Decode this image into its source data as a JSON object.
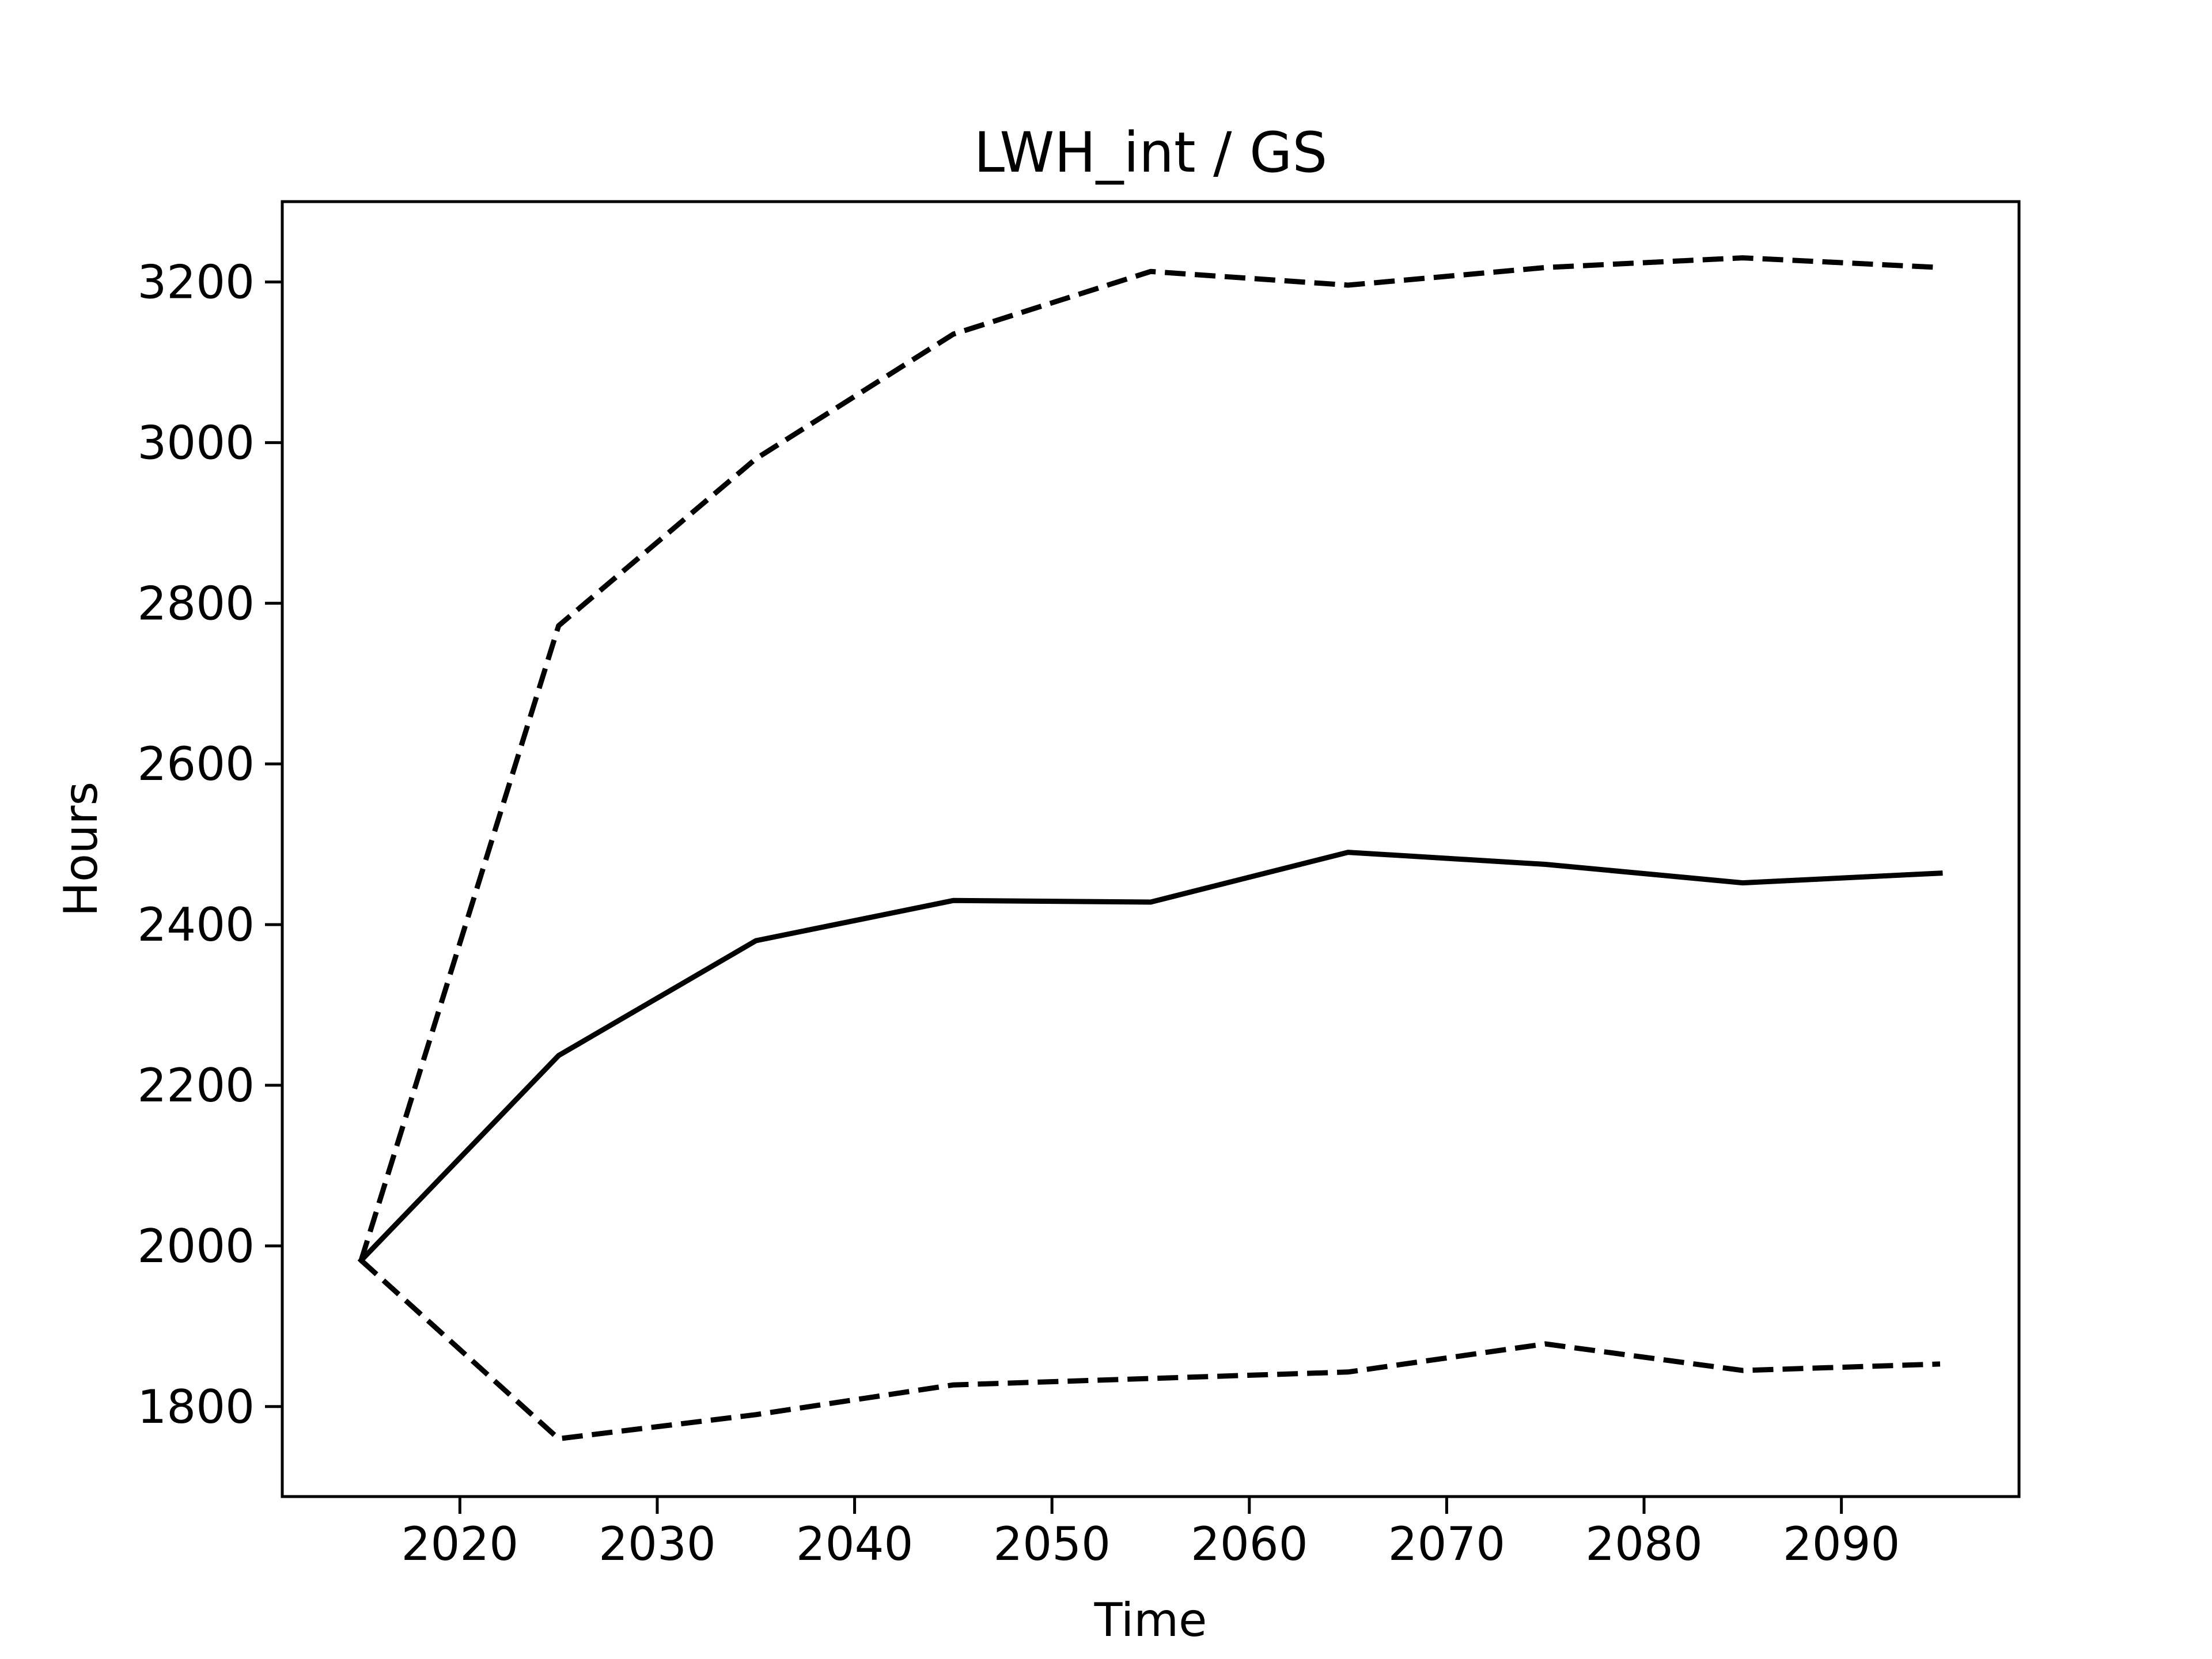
{
  "chart_data": {
    "type": "line",
    "title": "LWH_int / GS",
    "xlabel": "Time",
    "ylabel": "Hours",
    "xlim": [
      2011,
      2099
    ],
    "ylim": [
      1688,
      3300
    ],
    "xticks": [
      2020,
      2030,
      2040,
      2050,
      2060,
      2070,
      2080,
      2090
    ],
    "yticks": [
      1800,
      2000,
      2200,
      2400,
      2600,
      2800,
      3000,
      3200
    ],
    "grid": false,
    "legend": "none",
    "x": [
      2015,
      2025,
      2035,
      2045,
      2055,
      2065,
      2075,
      2085,
      2095
    ],
    "series": [
      {
        "style": "solid",
        "color": "#000000",
        "values": [
          1982,
          2237,
          2380,
          2430,
          2428,
          2490,
          2475,
          2452,
          2464
        ]
      },
      {
        "style": "dashed",
        "color": "#000000",
        "values": [
          1982,
          2772,
          2980,
          3135,
          3213,
          3196,
          3218,
          3230,
          3218
        ]
      },
      {
        "style": "dashed",
        "color": "#000000",
        "values": [
          1982,
          1760,
          1790,
          1827,
          1835,
          1843,
          1878,
          1845,
          1853
        ]
      }
    ]
  }
}
